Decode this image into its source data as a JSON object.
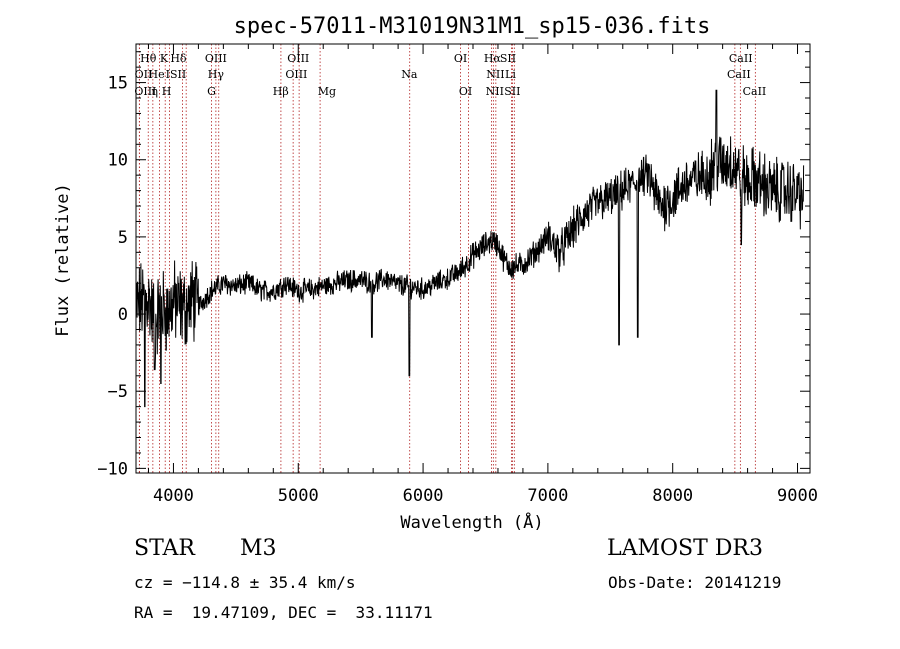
{
  "chart_data": {
    "type": "line",
    "title": "spec-57011-M31019N31M1_sp15-036.fits",
    "xlabel": "Wavelength (Å)",
    "ylabel": "Flux (relative)",
    "xlim": [
      3700,
      9100
    ],
    "ylim": [
      -10.3,
      17.5
    ],
    "xticks": [
      4000,
      5000,
      6000,
      7000,
      8000,
      9000
    ],
    "yticks": [
      -10,
      -5,
      0,
      5,
      10,
      15
    ],
    "series": [
      {
        "name": "flux",
        "x": [
          3700,
          3750,
          3800,
          3850,
          3900,
          3950,
          4000,
          4050,
          4100,
          4150,
          4200,
          4300,
          4400,
          4500,
          4600,
          4700,
          4800,
          4900,
          5000,
          5100,
          5200,
          5300,
          5400,
          5500,
          5600,
          5700,
          5800,
          5890,
          6000,
          6100,
          6200,
          6300,
          6400,
          6500,
          6550,
          6600,
          6650,
          6700,
          6800,
          6900,
          7000,
          7100,
          7200,
          7300,
          7400,
          7500,
          7600,
          7700,
          7750,
          7800,
          7850,
          7900,
          8000,
          8100,
          8200,
          8300,
          8350,
          8400,
          8450,
          8500,
          8550,
          8600,
          8650,
          8700,
          8800,
          8900,
          9000,
          9050
        ],
        "y": [
          0.5,
          0.8,
          1.0,
          -0.5,
          0.5,
          0.0,
          0.8,
          0.5,
          0.3,
          1.0,
          0.5,
          1.5,
          2.0,
          1.8,
          2.0,
          1.5,
          1.5,
          2.0,
          1.5,
          1.6,
          1.8,
          2.0,
          2.2,
          2.2,
          2.0,
          2.3,
          1.9,
          1.8,
          1.6,
          2.0,
          2.3,
          2.8,
          3.8,
          4.5,
          4.8,
          4.5,
          3.5,
          3.0,
          3.2,
          4.0,
          5.0,
          4.0,
          5.5,
          6.5,
          7.2,
          7.5,
          8.0,
          8.5,
          8.8,
          9.0,
          8.0,
          7.0,
          7.5,
          8.5,
          8.8,
          9.2,
          10.0,
          9.5,
          10.0,
          9.5,
          9.0,
          8.5,
          8.8,
          8.5,
          8.0,
          8.0,
          7.8,
          7.5
        ]
      }
    ],
    "absorption_dips": [
      {
        "x": 3770,
        "y": -6.0
      },
      {
        "x": 3850,
        "y": -3.6
      },
      {
        "x": 3900,
        "y": -4.5
      },
      {
        "x": 5590,
        "y": -1.5
      },
      {
        "x": 5890,
        "y": -4.0
      },
      {
        "x": 7570,
        "y": -2.0
      },
      {
        "x": 7720,
        "y": -1.5
      },
      {
        "x": 8350,
        "y": 14.5
      },
      {
        "x": 8550,
        "y": 4.5
      }
    ],
    "lines": [
      {
        "label": "Hθ",
        "wavelength": 3798,
        "row": 0,
        "text_x": 3798
      },
      {
        "label": "K",
        "wavelength": 3934,
        "row": 0,
        "text_x": 3924
      },
      {
        "label": "Hδ",
        "wavelength": 4102,
        "row": 0,
        "text_x": 4040
      },
      {
        "label": "OIII",
        "wavelength": 4363,
        "row": 0,
        "text_x": 4340
      },
      {
        "label": "OIII",
        "wavelength": 5007,
        "row": 0,
        "text_x": 5000
      },
      {
        "label": "OI",
        "wavelength": 6300,
        "row": 0,
        "text_x": 6300
      },
      {
        "label": "Hα",
        "wavelength": 6563,
        "row": 0,
        "text_x": 6555
      },
      {
        "label": "SII",
        "wavelength": 6717,
        "row": 0,
        "text_x": 6680
      },
      {
        "label": "CaII",
        "wavelength": 8498,
        "row": 0,
        "text_x": 8545
      },
      {
        "label": "OII",
        "wavelength": 3727,
        "row": 1,
        "text_x": 3760
      },
      {
        "label": "He",
        "wavelength": 3889,
        "row": 1,
        "text_x": 3865
      },
      {
        "label": "ISII",
        "wavelength": 4072,
        "row": 1,
        "text_x": 4020
      },
      {
        "label": "Hγ",
        "wavelength": 4340,
        "row": 1,
        "text_x": 4340
      },
      {
        "label": "OIII",
        "wavelength": 4959,
        "row": 1,
        "text_x": 4985
      },
      {
        "label": "Na",
        "wavelength": 5893,
        "row": 1,
        "text_x": 5890
      },
      {
        "label": "NII",
        "wavelength": 6583,
        "row": 1,
        "text_x": 6580
      },
      {
        "label": "Li",
        "wavelength": 6708,
        "row": 1,
        "text_x": 6700
      },
      {
        "label": "CaII",
        "wavelength": 8542,
        "row": 1,
        "text_x": 8530
      },
      {
        "label": "OIII",
        "wavelength": 3727,
        "row": 2,
        "text_x": 3775
      },
      {
        "label": "η",
        "wavelength": 3835,
        "row": 2,
        "text_x": 3850
      },
      {
        "label": "H",
        "wavelength": 3968,
        "row": 2,
        "text_x": 3945
      },
      {
        "label": "G",
        "wavelength": 4305,
        "row": 2,
        "text_x": 4305
      },
      {
        "label": "Hβ",
        "wavelength": 4861,
        "row": 2,
        "text_x": 4860
      },
      {
        "label": "Mg",
        "wavelength": 5175,
        "row": 2,
        "text_x": 5230
      },
      {
        "label": "OI",
        "wavelength": 6364,
        "row": 2,
        "text_x": 6340
      },
      {
        "label": "NII",
        "wavelength": 6548,
        "row": 2,
        "text_x": 6575
      },
      {
        "label": "SII",
        "wavelength": 6731,
        "row": 2,
        "text_x": 6715
      },
      {
        "label": "CaII",
        "wavelength": 8662,
        "row": 2,
        "text_x": 8655
      }
    ],
    "line_marker_color": "#b22222",
    "trace_color": "#000000"
  },
  "info": {
    "object_class": "STAR",
    "subclass": "M3",
    "survey": "LAMOST DR3",
    "cz": "cz = −114.8 ± 35.4 km/s",
    "obs_date": "Obs-Date: 20141219",
    "radec": "RA =  19.47109, DEC =  33.11171"
  }
}
